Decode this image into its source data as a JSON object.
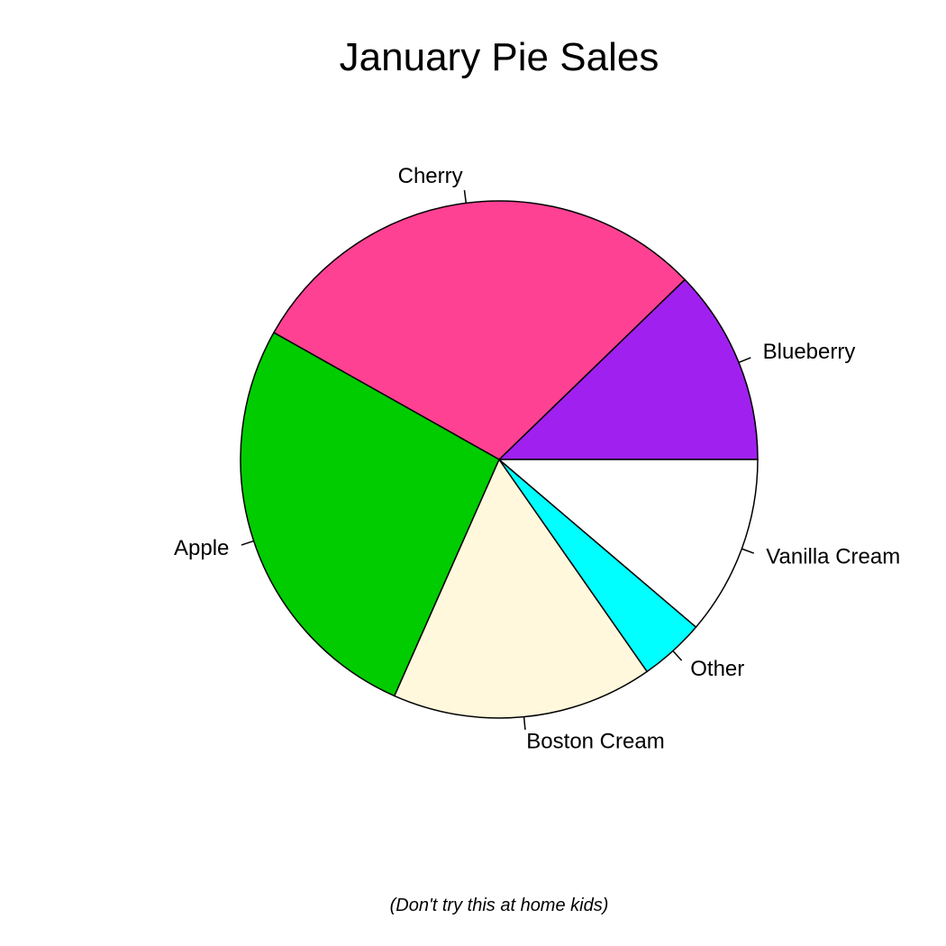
{
  "chart_data": {
    "type": "pie",
    "title": "January Pie Sales",
    "note": "(Don't try this at home kids)",
    "start_angle_deg": 0,
    "direction": "counterclockwise",
    "labels_outside": true,
    "legend": "none",
    "slices": [
      {
        "label": "Blueberry",
        "value": 12,
        "color": "#A020F0"
      },
      {
        "label": "Cherry",
        "value": 29,
        "color": "#FF4193"
      },
      {
        "label": "Apple",
        "value": 26,
        "color": "#00CC00"
      },
      {
        "label": "Boston Cream",
        "value": 16,
        "color": "#FFF8DC"
      },
      {
        "label": "Other",
        "value": 4,
        "color": "#00FFFF"
      },
      {
        "label": "Vanilla Cream",
        "value": 11,
        "color": "#FFFFFF"
      }
    ]
  }
}
